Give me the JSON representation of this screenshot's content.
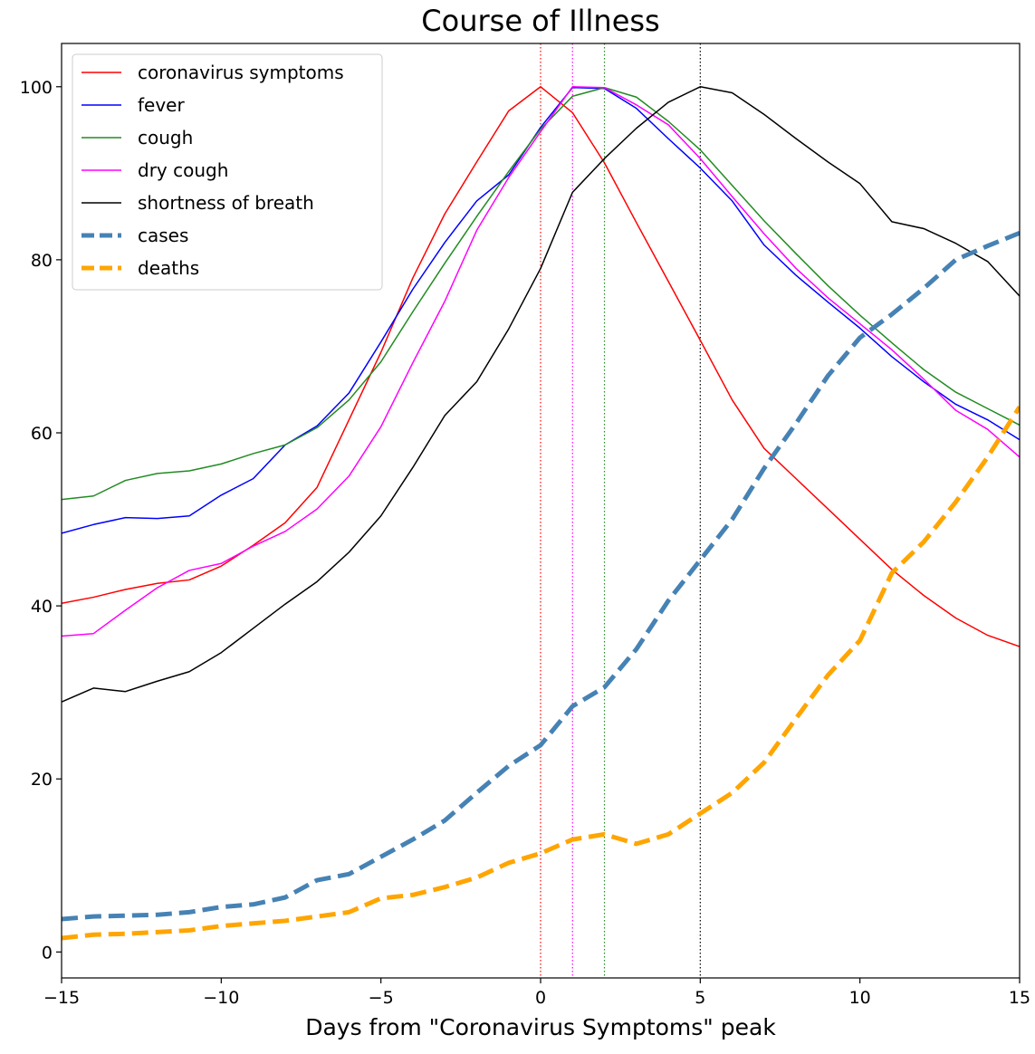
{
  "chart_data": {
    "type": "line",
    "title": "Course of Illness",
    "xlabel": "Days from \"Coronavirus Symptoms\" peak",
    "ylabel": "",
    "xlim": [
      -15,
      15
    ],
    "ylim": [
      -3,
      105
    ],
    "xticks": [
      -15,
      -10,
      -5,
      0,
      5,
      10,
      15
    ],
    "xtick_labels": [
      "−15",
      "−10",
      "−5",
      "0",
      "5",
      "10",
      "15"
    ],
    "yticks": [
      0,
      20,
      40,
      60,
      80,
      100
    ],
    "ytick_labels": [
      "0",
      "20",
      "40",
      "60",
      "80",
      "100"
    ],
    "grid": false,
    "legend_position": "top-left",
    "x": [
      -15,
      -14,
      -13,
      -12,
      -11,
      -10,
      -9,
      -8,
      -7,
      -6,
      -5,
      -4,
      -3,
      -2,
      -1,
      0,
      1,
      2,
      3,
      4,
      5,
      6,
      7,
      8,
      9,
      10,
      11,
      12,
      13,
      14,
      15
    ],
    "series": [
      {
        "name": "coronavirus symptoms",
        "color": "#ff0000",
        "style": "solid",
        "values": [
          40.3,
          41.0,
          41.9,
          42.6,
          43.0,
          44.6,
          47.0,
          49.6,
          53.7,
          61.5,
          69.3,
          77.9,
          85.3,
          91.3,
          97.2,
          100.0,
          97.0,
          91.2,
          84.3,
          77.5,
          70.7,
          63.8,
          58.2,
          54.7,
          51.2,
          47.7,
          44.2,
          41.2,
          38.6,
          36.6,
          35.3
        ]
      },
      {
        "name": "fever",
        "color": "#0000ff",
        "style": "solid",
        "values": [
          48.4,
          49.4,
          50.2,
          50.1,
          50.4,
          52.8,
          54.7,
          58.6,
          60.8,
          64.6,
          70.5,
          76.6,
          82.0,
          86.8,
          89.8,
          95.3,
          99.9,
          99.8,
          97.5,
          94.0,
          90.6,
          86.8,
          81.7,
          78.2,
          75.1,
          72.1,
          68.8,
          65.9,
          63.3,
          61.5,
          59.2
        ]
      },
      {
        "name": "cough",
        "color": "#228B22",
        "style": "solid",
        "values": [
          52.3,
          52.7,
          54.5,
          55.3,
          55.6,
          56.4,
          57.6,
          58.6,
          60.6,
          63.8,
          68.2,
          74.0,
          79.6,
          85.0,
          90.2,
          95.1,
          98.9,
          99.9,
          98.8,
          96.0,
          92.7,
          88.6,
          84.5,
          80.7,
          77.0,
          73.6,
          70.4,
          67.3,
          64.7,
          62.8,
          60.9
        ]
      },
      {
        "name": "dry cough",
        "color": "#ff00ff",
        "style": "solid",
        "values": [
          36.5,
          36.8,
          39.5,
          42.1,
          44.1,
          44.9,
          46.9,
          48.6,
          51.2,
          55.0,
          60.7,
          68.1,
          75.2,
          83.4,
          89.5,
          94.8,
          100.0,
          99.9,
          97.9,
          95.6,
          91.7,
          87.3,
          83.0,
          79.0,
          75.6,
          72.6,
          69.6,
          66.2,
          62.6,
          60.4,
          57.2
        ]
      },
      {
        "name": "shortness of breath",
        "color": "#000000",
        "style": "solid",
        "values": [
          28.9,
          30.5,
          30.1,
          31.3,
          32.4,
          34.6,
          37.4,
          40.2,
          42.8,
          46.2,
          50.4,
          56.0,
          62.0,
          65.9,
          72.0,
          79.0,
          87.8,
          91.7,
          95.2,
          98.2,
          100.0,
          99.3,
          96.8,
          94.0,
          91.3,
          88.8,
          84.4,
          83.6,
          81.9,
          79.8,
          75.8
        ]
      },
      {
        "name": "cases",
        "color": "#4682b4",
        "style": "dashed",
        "values": [
          3.8,
          4.1,
          4.2,
          4.3,
          4.6,
          5.2,
          5.5,
          6.3,
          8.3,
          9.0,
          11.0,
          13.0,
          15.2,
          18.4,
          21.5,
          23.9,
          28.4,
          30.6,
          35.0,
          40.6,
          45.3,
          50.0,
          55.9,
          61.1,
          66.6,
          71.0,
          73.7,
          76.7,
          80.0,
          81.6,
          83.1
        ]
      },
      {
        "name": "deaths",
        "color": "#ffa500",
        "style": "dashed",
        "values": [
          1.6,
          2.0,
          2.1,
          2.3,
          2.5,
          3.0,
          3.3,
          3.6,
          4.1,
          4.6,
          6.2,
          6.6,
          7.5,
          8.6,
          10.3,
          11.4,
          13.0,
          13.6,
          12.5,
          13.6,
          16.0,
          18.4,
          21.9,
          27.0,
          32.0,
          36.0,
          43.8,
          47.4,
          52.0,
          57.2,
          63.0
        ]
      }
    ],
    "vlines": [
      {
        "x": 0,
        "color": "#ff0000",
        "style": "dotted"
      },
      {
        "x": 1,
        "color": "#ff00ff",
        "style": "dotted"
      },
      {
        "x": 2,
        "color": "#228B22",
        "style": "dotted"
      },
      {
        "x": 5,
        "color": "#000000",
        "style": "dotted"
      }
    ]
  }
}
